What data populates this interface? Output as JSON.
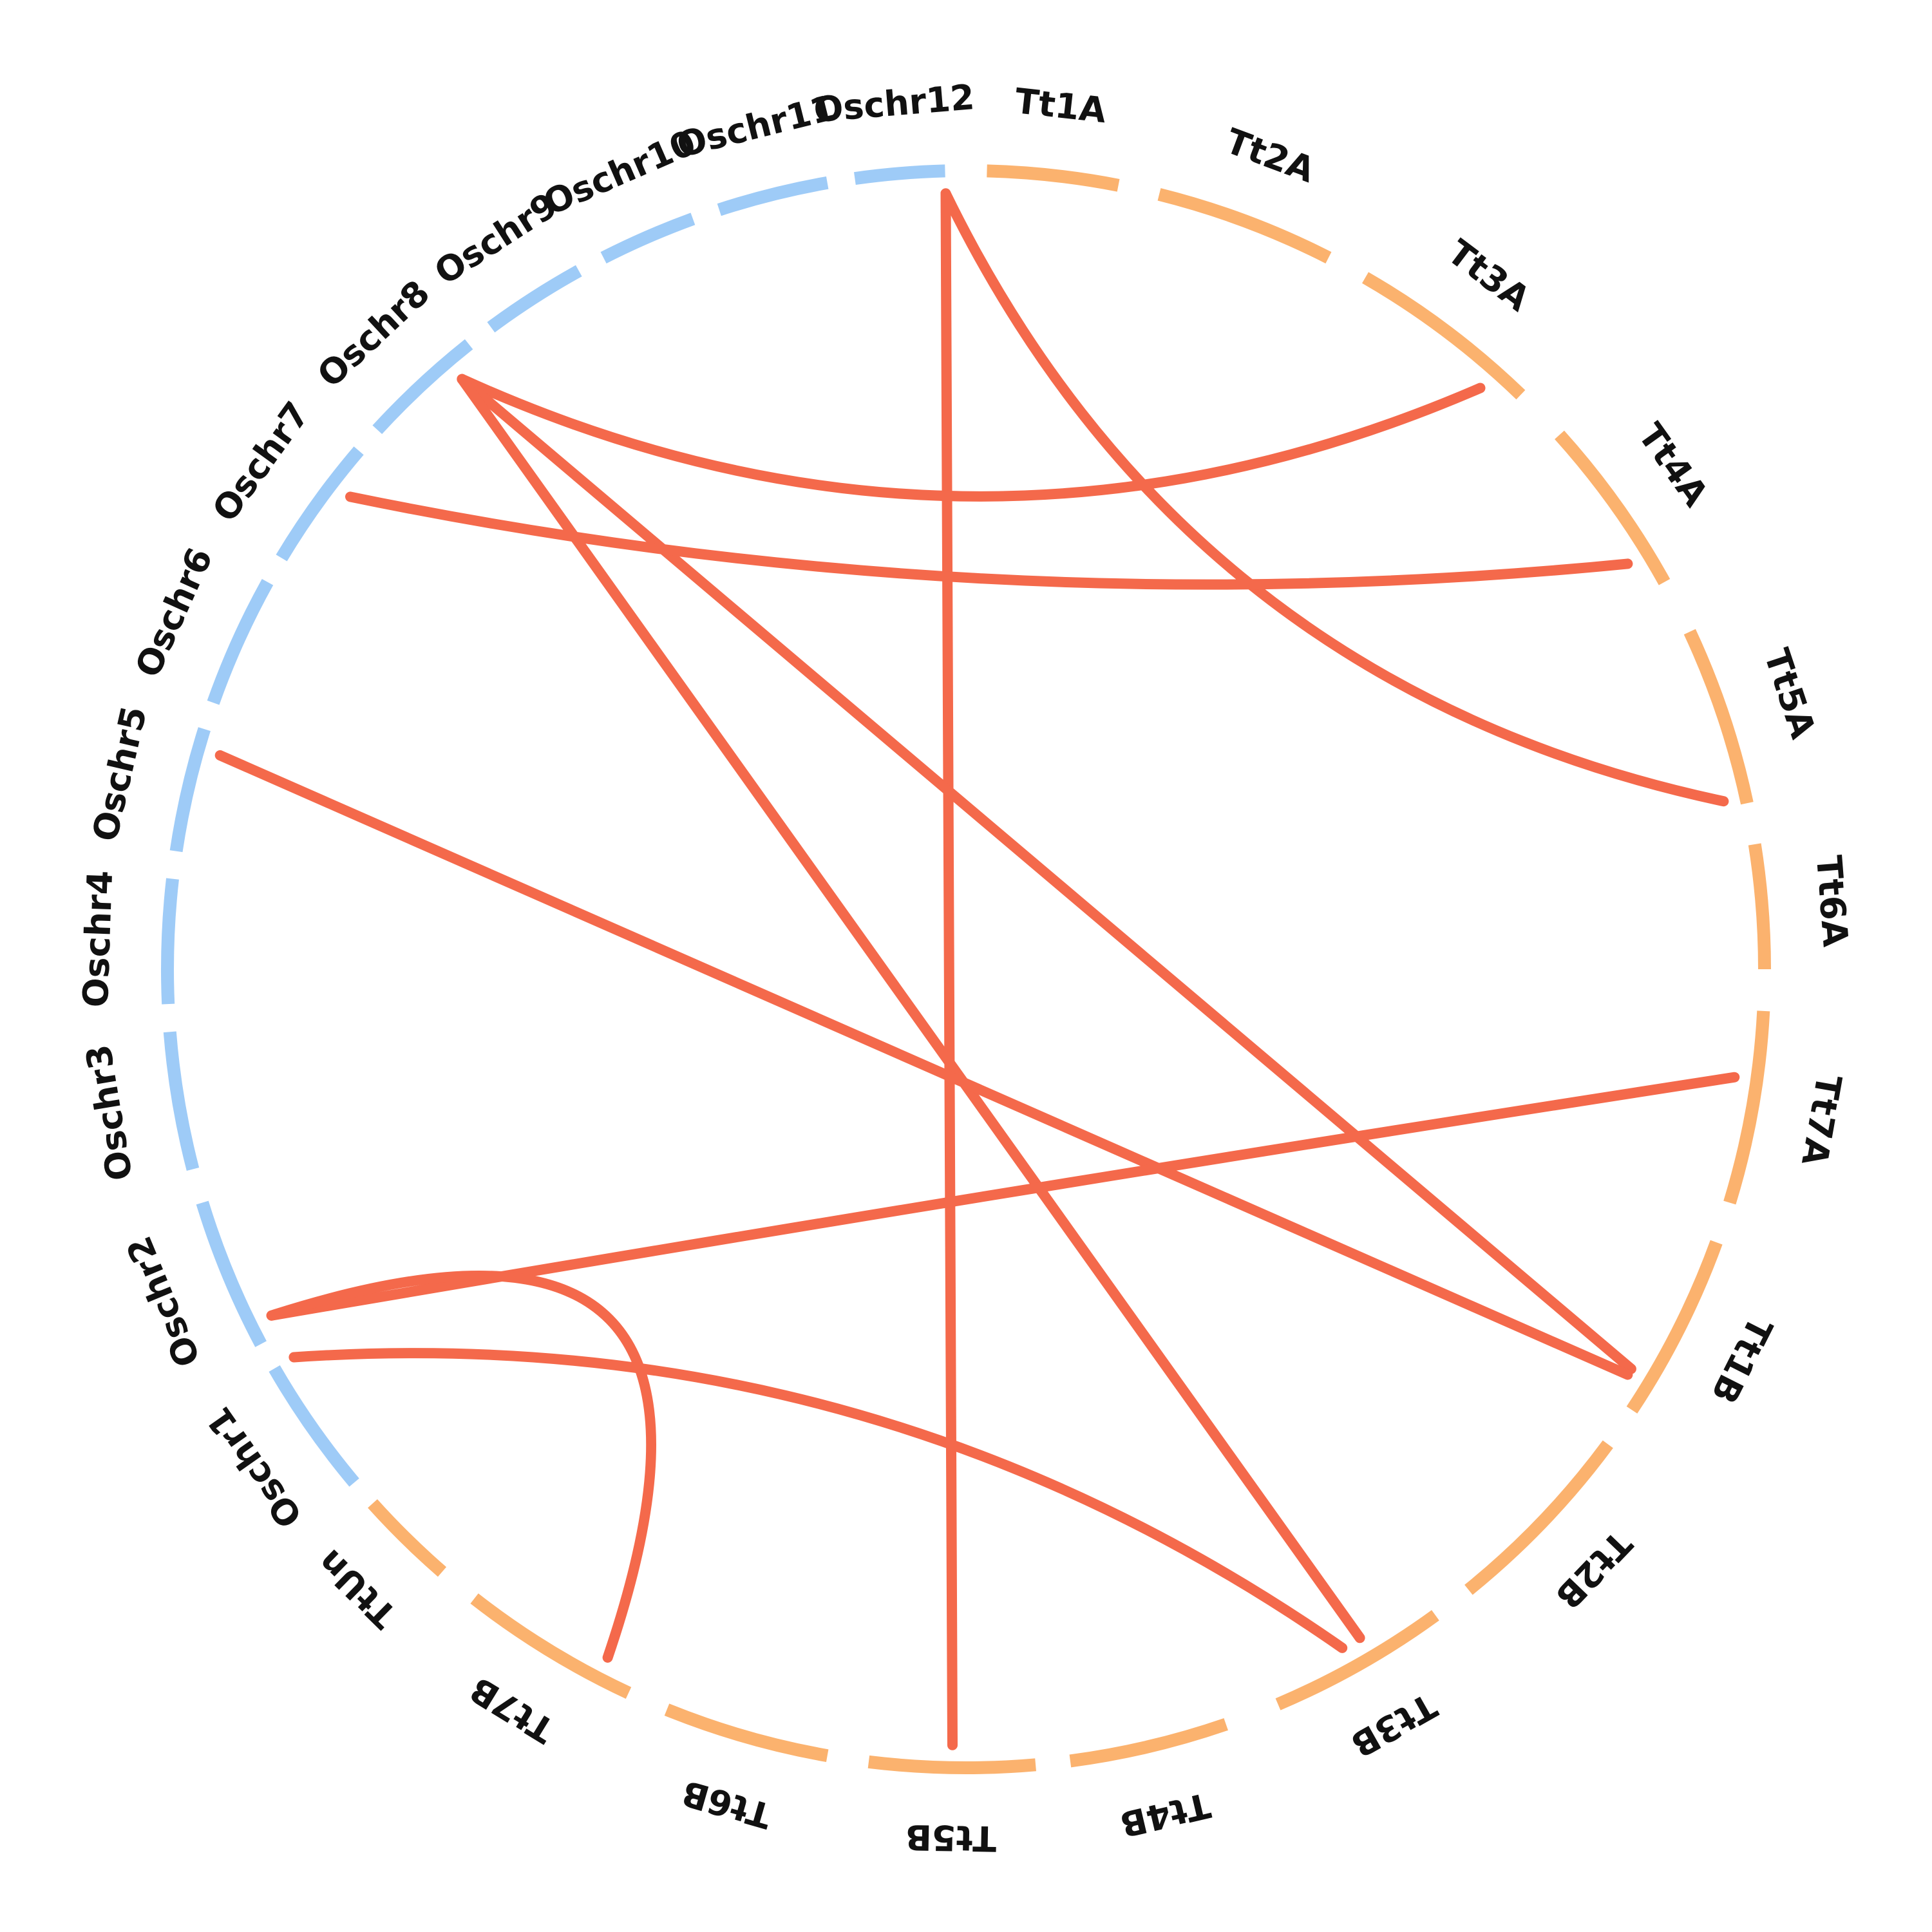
{
  "colors": {
    "rice": "#9ecbf7",
    "wheat": "#fbb26e",
    "link": "#f4694b",
    "label": "#111111"
  },
  "segments": [
    {
      "name": "Tt1A",
      "group": "wheat"
    },
    {
      "name": "Tt2A",
      "group": "wheat"
    },
    {
      "name": "Tt3A",
      "group": "wheat"
    },
    {
      "name": "Tt4A",
      "group": "wheat"
    },
    {
      "name": "Tt5A",
      "group": "wheat"
    },
    {
      "name": "Tt6A",
      "group": "wheat"
    },
    {
      "name": "Tt7A",
      "group": "wheat"
    },
    {
      "name": "Tt1B",
      "group": "wheat"
    },
    {
      "name": "Tt2B",
      "group": "wheat"
    },
    {
      "name": "Tt3B",
      "group": "wheat"
    },
    {
      "name": "Tt4B",
      "group": "wheat"
    },
    {
      "name": "Tt5B",
      "group": "wheat"
    },
    {
      "name": "Tt6B",
      "group": "wheat"
    },
    {
      "name": "Tt7B",
      "group": "wheat"
    },
    {
      "name": "TtUn",
      "group": "wheat"
    },
    {
      "name": "Oschr1",
      "group": "rice"
    },
    {
      "name": "Oschr2",
      "group": "rice"
    },
    {
      "name": "Oschr3",
      "group": "rice"
    },
    {
      "name": "Oschr4",
      "group": "rice"
    },
    {
      "name": "Oschr5",
      "group": "rice"
    },
    {
      "name": "Oschr6",
      "group": "rice"
    },
    {
      "name": "Oschr7",
      "group": "rice"
    },
    {
      "name": "Oschr8",
      "group": "rice"
    },
    {
      "name": "Oschr9",
      "group": "rice"
    },
    {
      "name": "Oschr10",
      "group": "rice"
    },
    {
      "name": "Oschr11",
      "group": "rice"
    },
    {
      "name": "Oschr12",
      "group": "rice"
    }
  ],
  "links": [
    {
      "from": "Oschr12",
      "to": "Tt5A"
    },
    {
      "from": "Oschr12",
      "to": "Tt5B"
    },
    {
      "from": "Oschr8",
      "to": "Tt3A"
    },
    {
      "from": "Oschr8",
      "to": "Tt1B"
    },
    {
      "from": "Oschr8",
      "to": "Tt3B"
    },
    {
      "from": "Oschr7",
      "to": "Tt4A"
    },
    {
      "from": "Oschr5",
      "to": "Tt1B"
    },
    {
      "from": "Oschr2",
      "to": "Tt7A"
    },
    {
      "from": "Oschr2",
      "to": "Tt7B"
    },
    {
      "from": "Oschr1",
      "to": "Tt3B"
    }
  ]
}
